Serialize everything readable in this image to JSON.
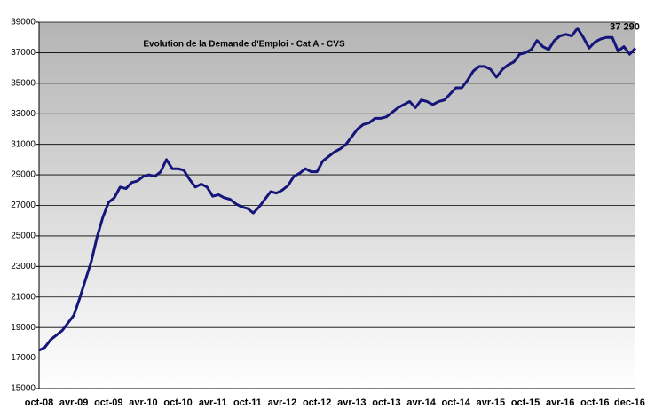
{
  "chart_data": {
    "type": "line",
    "title": "Evolution  de la Demande d'Emploi  - Cat A - CVS",
    "annotation": "37 290",
    "categories": [
      "oct-08",
      null,
      null,
      null,
      null,
      null,
      "avr-09",
      null,
      null,
      null,
      null,
      null,
      "oct-09",
      null,
      null,
      null,
      null,
      null,
      "avr-10",
      null,
      null,
      null,
      null,
      null,
      "oct-10",
      null,
      null,
      null,
      null,
      null,
      "avr-11",
      null,
      null,
      null,
      null,
      null,
      "oct-11",
      null,
      null,
      null,
      null,
      null,
      "avr-12",
      null,
      null,
      null,
      null,
      null,
      "oct-12",
      null,
      null,
      null,
      null,
      null,
      "avr-13",
      null,
      null,
      null,
      null,
      null,
      "oct-13",
      null,
      null,
      null,
      null,
      null,
      "avr-14",
      null,
      null,
      null,
      null,
      null,
      "oct-14",
      null,
      null,
      null,
      null,
      null,
      "avr-15",
      null,
      null,
      null,
      null,
      null,
      "oct-15",
      null,
      null,
      null,
      null,
      null,
      "avr-16",
      null,
      null,
      null,
      null,
      null,
      "oct-16",
      null,
      null,
      null,
      null,
      null,
      "dec-16",
      null
    ],
    "series": [
      {
        "name": "Cat A - CVS",
        "color": "#15157a",
        "values": [
          17500,
          17700,
          18200,
          18500,
          18800,
          19300,
          19800,
          20900,
          22100,
          23300,
          24900,
          26200,
          27200,
          27500,
          28200,
          28100,
          28500,
          28600,
          28900,
          29000,
          28900,
          29200,
          30000,
          29400,
          29400,
          29300,
          28700,
          28200,
          28400,
          28200,
          27600,
          27700,
          27500,
          27400,
          27100,
          26900,
          26800,
          26500,
          26900,
          27400,
          27900,
          27800,
          28000,
          28300,
          28900,
          29100,
          29400,
          29200,
          29200,
          29900,
          30200,
          30500,
          30700,
          31000,
          31500,
          32000,
          32300,
          32400,
          32700,
          32700,
          32800,
          33100,
          33400,
          33600,
          33800,
          33400,
          33900,
          33800,
          33600,
          33800,
          33900,
          34300,
          34700,
          34700,
          35200,
          35800,
          36100,
          36100,
          35900,
          35400,
          35900,
          36200,
          36400,
          36900,
          37000,
          37200,
          37800,
          37400,
          37200,
          37800,
          38100,
          38200,
          38100,
          38600,
          38000,
          37300,
          37700,
          37900,
          38000,
          38000,
          37100,
          37400,
          36900,
          37290
        ]
      }
    ],
    "ylim": [
      15000,
      39000
    ],
    "yticks": [
      15000,
      17000,
      19000,
      21000,
      23000,
      25000,
      27000,
      29000,
      31000,
      33000,
      35000,
      37000,
      39000
    ],
    "grid": true
  }
}
